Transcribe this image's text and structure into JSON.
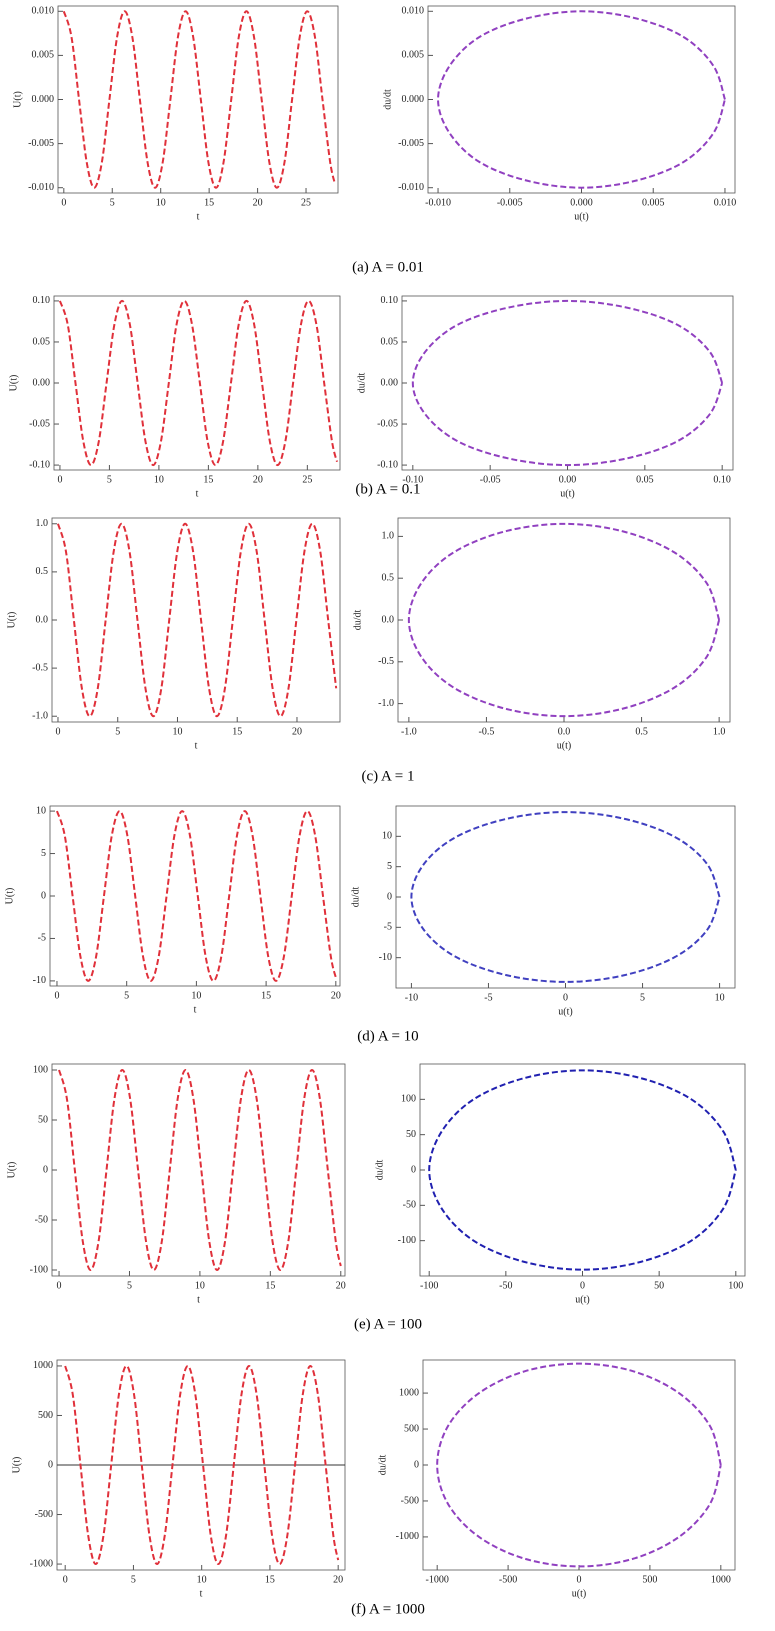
{
  "chart_data": [
    {
      "type": "line",
      "xlabel": "t",
      "ylabel": "U(t)",
      "xlim": [
        -0.6,
        28.3
      ],
      "xticks": [
        0,
        5,
        10,
        15,
        20,
        25
      ],
      "ylim": [
        -0.0106,
        0.0106
      ],
      "yticks": [
        {
          "value": -0.01,
          "label": "-0.010"
        },
        -0.005,
        {
          "value": 0,
          "label": "0.000"
        },
        0.005,
        {
          "value": 0.01,
          "label": "0.010"
        }
      ],
      "x": [
        0,
        0.79,
        1.57,
        2.36,
        3.14,
        3.93,
        4.71,
        5.5,
        6.28,
        7.07,
        7.85,
        8.64,
        9.42,
        10.21,
        11,
        11.78,
        12.57,
        13.35,
        14.14,
        14.92,
        15.71,
        16.49,
        17.28,
        18.06,
        18.85,
        19.63,
        20.42,
        21.21,
        21.99,
        22.78,
        23.56,
        24.35,
        25.13,
        25.92,
        26.7,
        27.49,
        28
      ],
      "series": [
        {
          "color": "#e0303a",
          "values": [
            0.01,
            0.0071,
            0,
            -0.0071,
            -0.01,
            -0.0071,
            0,
            0.0071,
            0.01,
            0.0071,
            0,
            -0.0071,
            -0.01,
            -0.0071,
            0,
            0.0071,
            0.01,
            0.0071,
            0,
            -0.0071,
            -0.01,
            -0.0071,
            0,
            0.0071,
            0.01,
            0.0071,
            0,
            -0.0071,
            -0.01,
            -0.0071,
            0,
            0.0071,
            0.01,
            0.0071,
            0,
            -0.0071,
            -0.0096
          ]
        }
      ]
    },
    {
      "type": "line",
      "xlabel": "u(t)",
      "ylabel": "du/dt",
      "xlim": [
        -0.0107,
        0.0107
      ],
      "xticks": [
        {
          "value": -0.01,
          "label": "-0.010"
        },
        -0.005,
        {
          "value": 0,
          "label": "0.000"
        },
        0.005,
        {
          "value": 0.01,
          "label": "0.010"
        }
      ],
      "ylim": [
        -0.0106,
        0.0106
      ],
      "yticks": [
        {
          "value": -0.01,
          "label": "-0.010"
        },
        -0.005,
        {
          "value": 0,
          "label": "0.000"
        },
        0.005,
        {
          "value": 0.01,
          "label": "0.010"
        }
      ],
      "x": [
        0.01,
        0.0092,
        0.0071,
        0.0038,
        0,
        -0.0038,
        -0.0071,
        -0.0092,
        -0.01,
        -0.0092,
        -0.0071,
        -0.0038,
        0,
        0.0038,
        0.0071,
        0.0092,
        0.01
      ],
      "series": [
        {
          "color": "#9040c0",
          "values": [
            0,
            0.0038,
            0.0071,
            0.0092,
            0.01,
            0.0092,
            0.0071,
            0.0038,
            0,
            -0.0038,
            -0.0071,
            -0.0092,
            -0.01,
            -0.0092,
            -0.0071,
            -0.0038,
            0
          ]
        }
      ]
    },
    {
      "type": "line",
      "xlabel": "t",
      "ylabel": "U(t)",
      "xlim": [
        -0.6,
        28.3
      ],
      "xticks": [
        0,
        5,
        10,
        15,
        20,
        25
      ],
      "ylim": [
        -0.106,
        0.106
      ],
      "yticks": [
        {
          "value": -0.1,
          "label": "-0.10"
        },
        -0.05,
        {
          "value": 0,
          "label": "0.00"
        },
        0.05,
        {
          "value": 0.1,
          "label": "0.10"
        }
      ],
      "x": [
        0,
        0.79,
        1.57,
        2.36,
        3.14,
        3.93,
        4.71,
        5.5,
        6.28,
        7.07,
        7.85,
        8.64,
        9.42,
        10.21,
        11,
        11.78,
        12.57,
        13.35,
        14.14,
        14.92,
        15.71,
        16.49,
        17.28,
        18.06,
        18.85,
        19.63,
        20.42,
        21.21,
        21.99,
        22.78,
        23.56,
        24.35,
        25.13,
        25.92,
        26.7,
        27.49,
        28
      ],
      "series": [
        {
          "color": "#e0303a",
          "values": [
            0.1,
            0.071,
            0,
            -0.071,
            -0.1,
            -0.071,
            0,
            0.071,
            0.1,
            0.071,
            0,
            -0.071,
            -0.1,
            -0.071,
            0,
            0.071,
            0.1,
            0.071,
            0,
            -0.071,
            -0.1,
            -0.071,
            0,
            0.071,
            0.1,
            0.071,
            0,
            -0.071,
            -0.1,
            -0.071,
            0,
            0.071,
            0.1,
            0.071,
            0,
            -0.071,
            -0.096
          ]
        }
      ]
    },
    {
      "type": "line",
      "xlabel": "u(t)",
      "ylabel": "du/dt",
      "xlim": [
        -0.107,
        0.107
      ],
      "xticks": [
        {
          "value": -0.1,
          "label": "-0.10"
        },
        -0.05,
        {
          "value": 0,
          "label": "0.00"
        },
        0.05,
        {
          "value": 0.1,
          "label": "0.10"
        }
      ],
      "ylim": [
        -0.106,
        0.106
      ],
      "yticks": [
        {
          "value": -0.1,
          "label": "-0.10"
        },
        -0.05,
        {
          "value": 0,
          "label": "0.00"
        },
        0.05,
        {
          "value": 0.1,
          "label": "0.10"
        }
      ],
      "x": [
        0.1,
        0.092,
        0.071,
        0.038,
        0,
        -0.038,
        -0.071,
        -0.092,
        -0.1,
        -0.092,
        -0.071,
        -0.038,
        0,
        0.038,
        0.071,
        0.092,
        0.1
      ],
      "series": [
        {
          "color": "#9040c0",
          "values": [
            0,
            0.038,
            0.071,
            0.092,
            0.1,
            0.092,
            0.071,
            0.038,
            0,
            -0.038,
            -0.071,
            -0.092,
            -0.1,
            -0.092,
            -0.071,
            -0.038,
            0
          ]
        }
      ]
    },
    {
      "type": "line",
      "xlabel": "t",
      "ylabel": "U(t)",
      "xlim": [
        -0.5,
        23.6
      ],
      "xticks": [
        0,
        5,
        10,
        15,
        20
      ],
      "ylim": [
        -1.06,
        1.06
      ],
      "yticks": [
        {
          "value": -1,
          "label": "-1.0"
        },
        -0.5,
        {
          "value": 0,
          "label": "0.0"
        },
        0.5,
        {
          "value": 1,
          "label": "1.0"
        }
      ],
      "x": [
        0,
        0.67,
        1.33,
        2,
        2.66,
        3.33,
        3.99,
        4.66,
        5.32,
        5.99,
        6.65,
        7.32,
        7.98,
        8.65,
        9.31,
        9.98,
        10.64,
        11.31,
        11.97,
        12.64,
        13.3,
        13.97,
        14.63,
        15.3,
        15.96,
        16.63,
        17.29,
        17.96,
        18.62,
        19.29,
        19.95,
        20.62,
        21.28,
        21.95,
        22.61,
        23.28
      ],
      "series": [
        {
          "color": "#e0303a",
          "values": [
            1,
            0.71,
            0,
            -0.71,
            -1,
            -0.71,
            0,
            0.71,
            1,
            0.71,
            0,
            -0.71,
            -1,
            -0.71,
            0,
            0.71,
            1,
            0.71,
            0,
            -0.71,
            -1,
            -0.71,
            0,
            0.71,
            1,
            0.71,
            0,
            -0.71,
            -1,
            -0.71,
            0,
            0.71,
            1,
            0.71,
            0,
            -0.71
          ]
        }
      ]
    },
    {
      "type": "line",
      "xlabel": "u(t)",
      "ylabel": "du/dt",
      "xlim": [
        -1.07,
        1.07
      ],
      "xticks": [
        {
          "value": -1,
          "label": "-1.0"
        },
        -0.5,
        {
          "value": 0,
          "label": "0.0"
        },
        0.5,
        {
          "value": 1,
          "label": "1.0"
        }
      ],
      "ylim": [
        -1.22,
        1.22
      ],
      "yticks": [
        {
          "value": -1,
          "label": "-1.0"
        },
        -0.5,
        {
          "value": 0,
          "label": "0.0"
        },
        0.5,
        {
          "value": 1,
          "label": "1.0"
        }
      ],
      "x": [
        1,
        0.92,
        0.71,
        0.38,
        0,
        -0.38,
        -0.71,
        -0.92,
        -1,
        -0.92,
        -0.71,
        -0.38,
        0,
        0.38,
        0.71,
        0.92,
        1
      ],
      "series": [
        {
          "color": "#9040c0",
          "values": [
            0,
            0.44,
            0.81,
            1.06,
            1.15,
            1.06,
            0.81,
            0.44,
            0,
            -0.44,
            -0.81,
            -1.06,
            -1.15,
            -1.06,
            -0.81,
            -0.44,
            0
          ]
        }
      ]
    },
    {
      "type": "line",
      "xlabel": "t",
      "ylabel": "U(t)",
      "xlim": [
        -0.5,
        20.3
      ],
      "xticks": [
        0,
        5,
        10,
        15,
        20
      ],
      "ylim": [
        -10.6,
        10.6
      ],
      "yticks": [
        -10,
        -5,
        0,
        5,
        10
      ],
      "x": [
        0,
        0.56,
        1.12,
        1.68,
        2.24,
        2.81,
        3.37,
        3.93,
        4.49,
        5.05,
        5.61,
        6.17,
        6.73,
        7.3,
        7.86,
        8.42,
        8.98,
        9.54,
        10.1,
        10.66,
        11.22,
        11.79,
        12.35,
        12.91,
        13.47,
        14.03,
        14.59,
        15.15,
        15.71,
        16.28,
        16.84,
        17.4,
        17.96,
        18.52,
        19.08,
        19.64,
        20
      ],
      "series": [
        {
          "color": "#e0303a",
          "values": [
            10,
            7.1,
            0,
            -7.1,
            -10,
            -7.1,
            0,
            7.1,
            10,
            7.1,
            0,
            -7.1,
            -10,
            -7.1,
            0,
            7.1,
            10,
            7.1,
            0,
            -7.1,
            -10,
            -7.1,
            0,
            7.1,
            10,
            7.1,
            0,
            -7.1,
            -10,
            -7.1,
            0,
            7.1,
            10,
            7.1,
            0,
            -7.1,
            -9.6
          ]
        }
      ]
    },
    {
      "type": "line",
      "xlabel": "u(t)",
      "ylabel": "du/dt",
      "xlim": [
        -11,
        11
      ],
      "xticks": [
        -10,
        -5,
        0,
        5,
        10
      ],
      "ylim": [
        -15,
        15
      ],
      "yticks": [
        -10,
        -5,
        0,
        5,
        10
      ],
      "x": [
        10,
        9.2,
        7.1,
        3.8,
        0,
        -3.8,
        -7.1,
        -9.2,
        -10,
        -9.2,
        -7.1,
        -3.8,
        0,
        3.8,
        7.1,
        9.2,
        10
      ],
      "series": [
        {
          "color": "#4040c0",
          "values": [
            0,
            5.4,
            9.9,
            12.9,
            14,
            12.9,
            9.9,
            5.4,
            0,
            -5.4,
            -9.9,
            -12.9,
            -14,
            -12.9,
            -9.9,
            -5.4,
            0
          ]
        }
      ]
    },
    {
      "type": "line",
      "xlabel": "t",
      "ylabel": "U(t)",
      "xlim": [
        -0.5,
        20.3
      ],
      "xticks": [
        0,
        5,
        10,
        15,
        20
      ],
      "ylim": [
        -106,
        106
      ],
      "yticks": [
        -100,
        -50,
        0,
        50,
        100
      ],
      "x": [
        0,
        0.56,
        1.12,
        1.68,
        2.24,
        2.81,
        3.37,
        3.93,
        4.49,
        5.05,
        5.61,
        6.17,
        6.73,
        7.3,
        7.86,
        8.42,
        8.98,
        9.54,
        10.1,
        10.66,
        11.22,
        11.79,
        12.35,
        12.91,
        13.47,
        14.03,
        14.59,
        15.15,
        15.71,
        16.28,
        16.84,
        17.4,
        17.96,
        18.52,
        19.08,
        19.64,
        20
      ],
      "series": [
        {
          "color": "#e0303a",
          "values": [
            100,
            71,
            0,
            -71,
            -100,
            -71,
            0,
            71,
            100,
            71,
            0,
            -71,
            -100,
            -71,
            0,
            71,
            100,
            71,
            0,
            -71,
            -100,
            -71,
            0,
            71,
            100,
            71,
            0,
            -71,
            -100,
            -71,
            0,
            71,
            100,
            71,
            0,
            -71,
            -96
          ]
        }
      ]
    },
    {
      "type": "line",
      "xlabel": "u(t)",
      "ylabel": "du/dt",
      "xlim": [
        -106,
        106
      ],
      "xticks": [
        -100,
        -50,
        0,
        50,
        100
      ],
      "ylim": [
        -150,
        150
      ],
      "yticks": [
        -100,
        -50,
        0,
        50,
        100
      ],
      "x": [
        100,
        92,
        71,
        38,
        0,
        -38,
        -71,
        -92,
        -100,
        -92,
        -71,
        -38,
        0,
        38,
        71,
        92,
        100
      ],
      "series": [
        {
          "color": "#2020b0",
          "values": [
            0,
            54,
            100,
            130,
            141,
            130,
            100,
            54,
            0,
            -54,
            -100,
            -130,
            -141,
            -130,
            -100,
            -54,
            0
          ]
        }
      ]
    },
    {
      "type": "line",
      "xlabel": "t",
      "ylabel": "U(t)",
      "xlim": [
        -0.6,
        20.5
      ],
      "xticks": [
        0,
        5,
        10,
        15,
        20
      ],
      "ylim": [
        -1060,
        1060
      ],
      "yticks": [
        -1000,
        -500,
        0,
        500,
        1000
      ],
      "zero_line": true,
      "x": [
        0,
        0.56,
        1.12,
        1.68,
        2.24,
        2.81,
        3.37,
        3.93,
        4.49,
        5.05,
        5.61,
        6.17,
        6.73,
        7.3,
        7.86,
        8.42,
        8.98,
        9.54,
        10.1,
        10.66,
        11.22,
        11.79,
        12.35,
        12.91,
        13.47,
        14.03,
        14.59,
        15.15,
        15.71,
        16.28,
        16.84,
        17.4,
        17.96,
        18.52,
        19.08,
        19.64,
        20
      ],
      "series": [
        {
          "color": "#e0303a",
          "values": [
            1000,
            707,
            0,
            -707,
            -1000,
            -707,
            0,
            707,
            1000,
            707,
            0,
            -707,
            -1000,
            -707,
            0,
            707,
            1000,
            707,
            0,
            -707,
            -1000,
            -707,
            0,
            707,
            1000,
            707,
            0,
            -707,
            -1000,
            -707,
            0,
            707,
            1000,
            707,
            0,
            -707,
            -960
          ]
        }
      ]
    },
    {
      "type": "line",
      "xlabel": "u(t)",
      "ylabel": "du/dt",
      "xlim": [
        -1100,
        1100
      ],
      "xticks": [
        -1000,
        -500,
        0,
        500,
        1000
      ],
      "ylim": [
        -1460,
        1460
      ],
      "yticks": [
        -1000,
        -500,
        0,
        500,
        1000
      ],
      "x": [
        1000,
        924,
        707,
        383,
        0,
        -383,
        -707,
        -924,
        -1000,
        -924,
        -707,
        -383,
        0,
        383,
        707,
        924,
        1000
      ],
      "series": [
        {
          "color": "#9040c0",
          "values": [
            0,
            540,
            997,
            1303,
            1410,
            1303,
            997,
            540,
            0,
            -540,
            -997,
            -1303,
            -1410,
            -1303,
            -997,
            -540,
            0
          ]
        }
      ]
    }
  ],
  "captions": [
    "(a)  A = 0.01",
    "(b)  A = 0.1",
    "(c)  A = 1",
    "(d)  A = 10",
    "(e)  A = 100",
    "(f)  A = 1000"
  ]
}
